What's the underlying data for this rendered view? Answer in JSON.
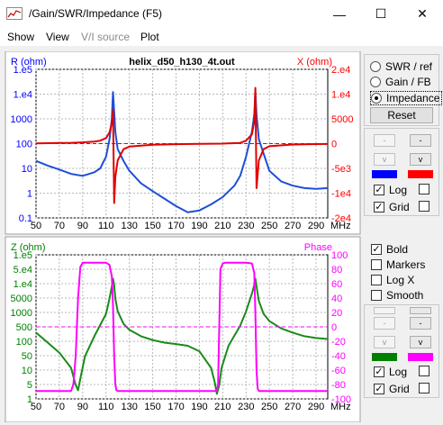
{
  "window": {
    "title": "/Gain/SWR/Impedance (F5)",
    "minimize_glyph": "—",
    "maximize_glyph": "☐",
    "close_glyph": "✕"
  },
  "menu": [
    {
      "label": "Show",
      "enabled": true
    },
    {
      "label": "View",
      "enabled": true
    },
    {
      "label": "V/I source",
      "enabled": false
    },
    {
      "label": "Plot",
      "enabled": true
    }
  ],
  "top_plot": {
    "title": "helix_d50_h130_4t.out",
    "left_label": "R (ohm)",
    "right_label": "X (ohm)",
    "left_ticks": [
      "1.e5",
      "1.e4",
      "1000",
      "100",
      "10",
      "1",
      "0.1"
    ],
    "right_ticks": [
      "2.e4",
      "1.e4",
      "5000",
      "0",
      "-5e3",
      "-1e4",
      "-2e4"
    ],
    "x_ticks": [
      "50",
      "70",
      "90",
      "110",
      "130",
      "150",
      "170",
      "190",
      "210",
      "230",
      "250",
      "270",
      "290"
    ],
    "x_unit": "MHz",
    "colors": {
      "left": "#0000ff",
      "right": "#ff0000",
      "left_series": "#1f4fd6",
      "right_series": "#e00000"
    }
  },
  "bottom_plot": {
    "left_label": "Z (ohm)",
    "right_label": "Phase",
    "left_ticks": [
      "1.e5",
      "5.e4",
      "1.e4",
      "5000",
      "1000",
      "500",
      "100",
      "50",
      "10",
      "5",
      "1"
    ],
    "right_ticks": [
      "100",
      "80",
      "60",
      "40",
      "20",
      "0",
      "-20",
      "-40",
      "-60",
      "-80",
      "-100"
    ],
    "x_ticks": [
      "50",
      "70",
      "90",
      "110",
      "130",
      "150",
      "170",
      "190",
      "210",
      "230",
      "250",
      "270",
      "290"
    ],
    "x_unit": "MHz",
    "colors": {
      "left": "#008000",
      "right": "#ff00ff",
      "left_series": "#1a8a1a",
      "right_series": "#ff00ff"
    }
  },
  "chart_data": [
    {
      "type": "line",
      "title": "helix_d50_h130_4t.out",
      "xlabel": "MHz",
      "xlim": [
        50,
        300
      ],
      "series": [
        {
          "name": "R (ohm)",
          "axis": "left",
          "scale": "log",
          "ylim": [
            0.1,
            100000
          ],
          "x": [
            50,
            60,
            70,
            80,
            90,
            100,
            105,
            110,
            113,
            115,
            116,
            117,
            118,
            120,
            125,
            130,
            140,
            150,
            160,
            170,
            180,
            190,
            200,
            210,
            220,
            225,
            230,
            235,
            237,
            238,
            239,
            241,
            245,
            250,
            260,
            270,
            280,
            290,
            300
          ],
          "y": [
            20,
            13,
            9,
            6,
            5,
            7,
            10,
            30,
            150,
            1000,
            12000,
            2000,
            300,
            60,
            20,
            8,
            2.5,
            1.2,
            0.6,
            0.3,
            0.17,
            0.2,
            0.35,
            0.7,
            2,
            5,
            30,
            300,
            1500,
            12000,
            1500,
            150,
            40,
            8,
            3,
            2,
            1.6,
            1.5,
            1.6
          ]
        },
        {
          "name": "X (ohm)",
          "axis": "right",
          "scale": "linear",
          "ylim": [
            -20000,
            20000
          ],
          "x": [
            50,
            60,
            70,
            80,
            90,
            100,
            105,
            110,
            113,
            115,
            116,
            117,
            118,
            120,
            125,
            130,
            150,
            170,
            190,
            210,
            225,
            230,
            235,
            237,
            238,
            239,
            241,
            245,
            250,
            270,
            290,
            300
          ],
          "y": [
            80,
            120,
            160,
            220,
            330,
            550,
            800,
            1500,
            3000,
            5500,
            9000,
            -16000,
            -9000,
            -4500,
            -1500,
            -800,
            -300,
            -150,
            -80,
            0,
            200,
            800,
            2500,
            6000,
            15000,
            -12000,
            -4500,
            -1500,
            -700,
            -250,
            -130,
            -100
          ]
        }
      ]
    },
    {
      "type": "line",
      "xlabel": "MHz",
      "xlim": [
        50,
        300
      ],
      "series": [
        {
          "name": "Z (ohm)",
          "axis": "left",
          "scale": "log",
          "ylim": [
            1,
            100000
          ],
          "x": [
            50,
            60,
            70,
            80,
            84,
            86,
            88,
            92,
            100,
            110,
            113,
            115,
            116,
            117,
            118,
            120,
            125,
            130,
            140,
            150,
            160,
            170,
            180,
            190,
            200,
            203,
            205,
            207,
            209,
            215,
            225,
            230,
            235,
            237,
            238,
            239,
            241,
            245,
            250,
            260,
            270,
            280,
            290,
            300
          ],
          "y": [
            200,
            90,
            40,
            12,
            3,
            2,
            5,
            30,
            150,
            900,
            3000,
            8000,
            15000,
            9000,
            3000,
            1100,
            400,
            250,
            150,
            110,
            90,
            80,
            70,
            45,
            12,
            4,
            1.5,
            3,
            12,
            70,
            350,
            1100,
            4500,
            9000,
            15000,
            8000,
            2500,
            900,
            500,
            280,
            200,
            150,
            130,
            120
          ]
        },
        {
          "name": "Phase",
          "axis": "right",
          "scale": "linear",
          "ylim": [
            -100,
            100
          ],
          "x": [
            50,
            70,
            80,
            82,
            84,
            86,
            88,
            90,
            100,
            110,
            113,
            115,
            116,
            117,
            118,
            119,
            120,
            150,
            190,
            205,
            206,
            207,
            208,
            210,
            212,
            220,
            230,
            235,
            237,
            238,
            239,
            240,
            241,
            270,
            300
          ],
          "y": [
            -89,
            -89,
            -89,
            -80,
            -40,
            40,
            83,
            89,
            89,
            89,
            86,
            70,
            30,
            -40,
            -80,
            -88,
            -89,
            -89,
            -89,
            -89,
            -80,
            0,
            80,
            88,
            89,
            89,
            89,
            88,
            75,
            20,
            -60,
            -86,
            -89,
            -89,
            -89
          ]
        }
      ]
    }
  ],
  "panel": {
    "radios": [
      {
        "label": "SWR / ref",
        "checked": false
      },
      {
        "label": "Gain / FB",
        "checked": false
      },
      {
        "label": "Impedance",
        "checked": true
      }
    ],
    "reset_label": "Reset",
    "top_controls": {
      "minus": "-",
      "v": "v",
      "log_label": "Log",
      "grid_label": "Grid",
      "swatch_left": "#0000ff",
      "swatch_right": "#ff0000"
    },
    "options": [
      {
        "label": "Bold",
        "checked": true
      },
      {
        "label": "Markers",
        "checked": false
      },
      {
        "label": "Log X",
        "checked": false
      },
      {
        "label": "Smooth",
        "checked": false
      }
    ],
    "bottom_controls": {
      "plus": "+",
      "minus": "-",
      "v": "v",
      "log_label": "Log",
      "grid_label": "Grid",
      "swatch_left": "#008000",
      "swatch_right": "#ff00ff"
    }
  }
}
